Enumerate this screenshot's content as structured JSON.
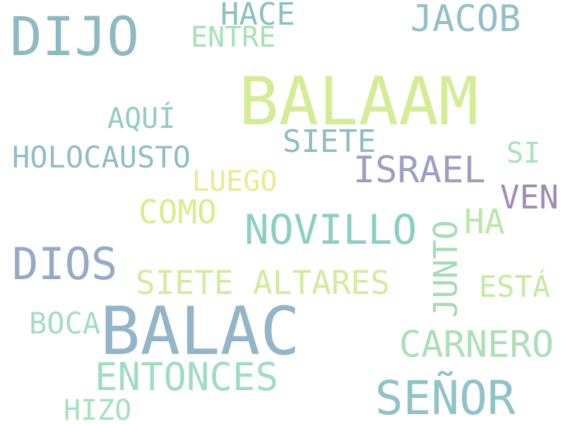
{
  "words": {
    "dijo": {
      "text": "DIJO",
      "color": "#8fb9c2"
    },
    "hace": {
      "text": "HACE",
      "color": "#8fc0c0"
    },
    "jacob": {
      "text": "JACOB",
      "color": "#93bfc6"
    },
    "entre": {
      "text": "ENTRE",
      "color": "#a6e0b8"
    },
    "balaam": {
      "text": "BALAAM",
      "color": "#d4ec96"
    },
    "aqui": {
      "text": "AQUÍ",
      "color": "#94cbc0"
    },
    "siete": {
      "text": "SIETE",
      "color": "#8ebcc4"
    },
    "holocausto": {
      "text": "HOLOCAUSTO",
      "color": "#92bcc8"
    },
    "si": {
      "text": "SI",
      "color": "#a8e2b6"
    },
    "israel": {
      "text": "ISRAEL",
      "color": "#9d9ec2"
    },
    "luego": {
      "text": "LUEGO",
      "color": "#ece98e"
    },
    "ven": {
      "text": "VEN",
      "color": "#a08bb6"
    },
    "como": {
      "text": "COMO",
      "color": "#dbec8c"
    },
    "novillo": {
      "text": "NOVILLO",
      "color": "#8ccfc2"
    },
    "ha": {
      "text": "HA",
      "color": "#b8e8a8"
    },
    "junto": {
      "text": "JUNTO",
      "color": "#a4dcb4"
    },
    "dios": {
      "text": "DIOS",
      "color": "#96a9c6"
    },
    "siete_altares": {
      "text": "SIETE ALTARES",
      "color": "#d2eba0"
    },
    "esta": {
      "text": "ESTÁ",
      "color": "#c2eba2"
    },
    "boca": {
      "text": "BOCA",
      "color": "#a4dcc4"
    },
    "balac": {
      "text": "BALAC",
      "color": "#94b4c8"
    },
    "carnero": {
      "text": "CARNERO",
      "color": "#acdfb6"
    },
    "entonces": {
      "text": "ENTONCES",
      "color": "#a0dcc2"
    },
    "senor": {
      "text": "SEÑOR",
      "color": "#90c2c8"
    },
    "hizo": {
      "text": "HIZO",
      "color": "#a6e0bc"
    }
  }
}
